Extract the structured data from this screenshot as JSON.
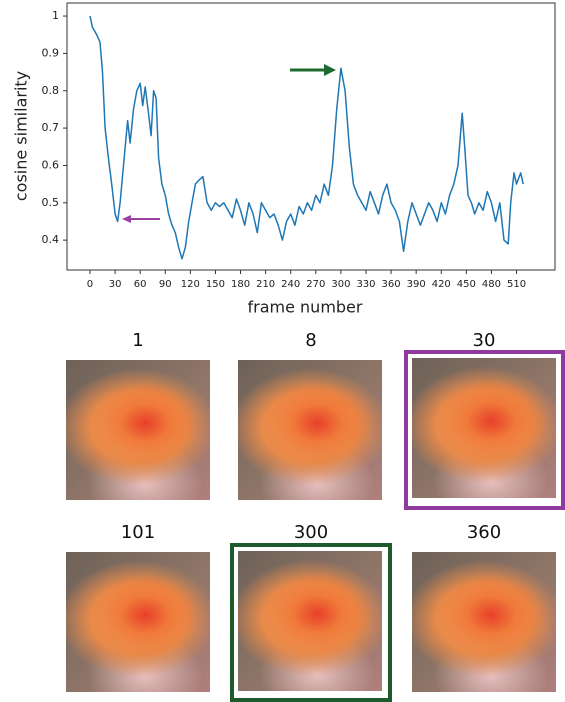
{
  "chart_data": {
    "type": "line",
    "ylabel": "cosine similarity",
    "xlabel": "frame number",
    "color": "#1f77b4",
    "x": [
      0,
      3,
      8,
      12,
      15,
      18,
      22,
      26,
      30,
      33,
      36,
      40,
      45,
      48,
      52,
      56,
      60,
      63,
      66,
      70,
      73,
      76,
      79,
      82,
      86,
      90,
      94,
      98,
      102,
      106,
      110,
      114,
      118,
      122,
      126,
      130,
      135,
      140,
      145,
      150,
      155,
      160,
      165,
      170,
      175,
      180,
      185,
      190,
      195,
      200,
      205,
      210,
      215,
      220,
      225,
      230,
      235,
      240,
      245,
      250,
      255,
      260,
      265,
      270,
      275,
      280,
      285,
      290,
      295,
      300,
      305,
      310,
      315,
      320,
      325,
      330,
      335,
      340,
      345,
      350,
      355,
      360,
      365,
      370,
      375,
      380,
      385,
      390,
      395,
      400,
      405,
      410,
      415,
      420,
      425,
      430,
      435,
      440,
      445,
      448,
      452,
      456,
      460,
      465,
      470,
      475,
      480,
      485,
      490,
      495,
      500,
      503,
      507,
      510,
      515,
      518
    ],
    "values": [
      1.0,
      0.97,
      0.95,
      0.93,
      0.85,
      0.7,
      0.62,
      0.55,
      0.47,
      0.45,
      0.5,
      0.6,
      0.72,
      0.66,
      0.75,
      0.8,
      0.82,
      0.76,
      0.81,
      0.74,
      0.68,
      0.8,
      0.78,
      0.62,
      0.55,
      0.52,
      0.47,
      0.44,
      0.42,
      0.38,
      0.35,
      0.38,
      0.45,
      0.5,
      0.55,
      0.56,
      0.57,
      0.5,
      0.48,
      0.5,
      0.49,
      0.5,
      0.48,
      0.46,
      0.51,
      0.48,
      0.44,
      0.5,
      0.47,
      0.42,
      0.5,
      0.48,
      0.46,
      0.47,
      0.44,
      0.4,
      0.45,
      0.47,
      0.44,
      0.49,
      0.47,
      0.5,
      0.48,
      0.52,
      0.5,
      0.55,
      0.52,
      0.6,
      0.75,
      0.86,
      0.8,
      0.65,
      0.55,
      0.52,
      0.5,
      0.48,
      0.53,
      0.5,
      0.47,
      0.52,
      0.55,
      0.5,
      0.48,
      0.45,
      0.37,
      0.45,
      0.5,
      0.47,
      0.44,
      0.47,
      0.5,
      0.48,
      0.45,
      0.5,
      0.47,
      0.52,
      0.55,
      0.6,
      0.74,
      0.65,
      0.52,
      0.5,
      0.47,
      0.5,
      0.48,
      0.53,
      0.5,
      0.45,
      0.5,
      0.4,
      0.39,
      0.5,
      0.58,
      0.55,
      0.58,
      0.55
    ],
    "xlim": [
      -27.5,
      556
    ],
    "ylim": [
      0.32,
      1.035
    ],
    "xticks": [
      0,
      30,
      60,
      90,
      120,
      150,
      180,
      210,
      240,
      270,
      300,
      330,
      360,
      390,
      420,
      450,
      480,
      510
    ],
    "yticks": [
      0.4,
      0.5,
      0.6,
      0.7,
      0.8,
      0.9,
      1.0
    ]
  },
  "frames": [
    "1",
    "8",
    "30",
    "101",
    "300",
    "360"
  ]
}
